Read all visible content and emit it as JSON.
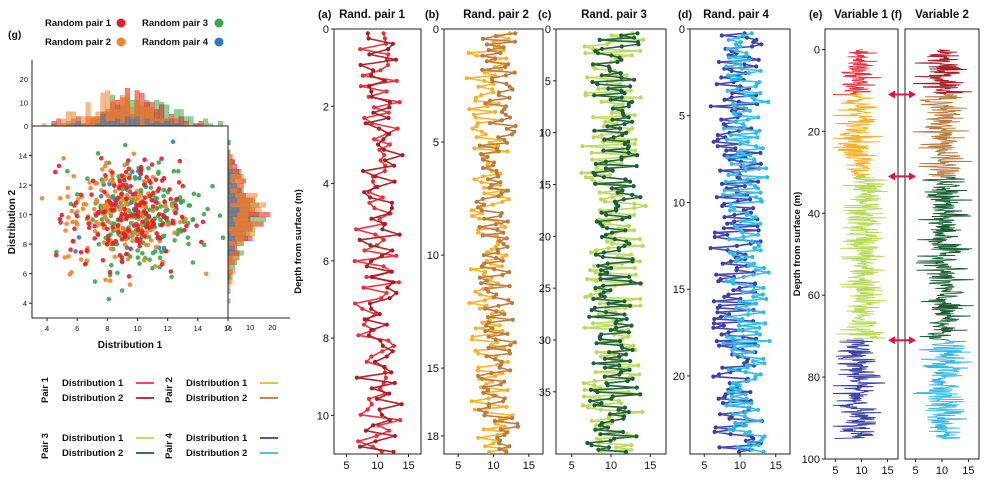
{
  "figure": {
    "colors": {
      "pair1_d1": "#e8303c",
      "pair1_d2": "#a81c24",
      "pair2_d1": "#f6b12a",
      "pair2_d2": "#b97a3e",
      "pair3_d1": "#b9d95a",
      "pair3_d2": "#1b5e35",
      "pair4_d1": "#3a3fa6",
      "pair4_d2": "#33b9e6",
      "scatter_p1": "#e22027",
      "scatter_p2": "#f0852a",
      "scatter_p3": "#3aa84a",
      "scatter_p4": "#2e7bbf",
      "arrow": "#d81b3c"
    }
  },
  "chart_data": [
    {
      "id": "g",
      "type": "scatter",
      "panel_label": "(g)",
      "title": "",
      "xlabel": "Distribution 1",
      "ylabel": "Distribution 2",
      "xlim": [
        3,
        16
      ],
      "ylim": [
        3,
        16
      ],
      "xticks": [
        "4",
        "6",
        "8",
        "10",
        "12",
        "14",
        "16"
      ],
      "yticks": [
        "4",
        "6",
        "8",
        "10",
        "12",
        "14"
      ],
      "top_hist_yticks": [
        "0",
        "10",
        "20"
      ],
      "right_hist_xticks": [
        "0",
        "10",
        "20"
      ],
      "legend": [
        {
          "label": "Random pair 1",
          "color_key": "scatter_p1"
        },
        {
          "label": "Random pair 3",
          "color_key": "scatter_p3"
        },
        {
          "label": "Random pair 2",
          "color_key": "scatter_p2"
        },
        {
          "label": "Random pair 4",
          "color_key": "scatter_p4"
        }
      ],
      "series": [
        {
          "name": "Random pair 1",
          "center": [
            9.2,
            10.0
          ],
          "spread": [
            1.8,
            1.8
          ]
        },
        {
          "name": "Random pair 2",
          "center": [
            8.9,
            10.1
          ],
          "spread": [
            2.0,
            1.9
          ]
        },
        {
          "name": "Random pair 3",
          "center": [
            10.2,
            10.0
          ],
          "spread": [
            2.0,
            1.9
          ]
        },
        {
          "name": "Random pair 4",
          "center": [
            9.5,
            10.3
          ],
          "spread": [
            1.8,
            1.7
          ]
        }
      ]
    },
    {
      "id": "a",
      "type": "line",
      "panel_label": "(a)",
      "title": "Rand. pair 1",
      "ylabel": "Depth from surface (m)",
      "xlim": [
        3,
        17
      ],
      "ylim": [
        0,
        11
      ],
      "xticks": [
        "5",
        "10",
        "15"
      ],
      "yticks": [
        "0",
        "2",
        "4",
        "6",
        "8",
        "10"
      ],
      "series": [
        {
          "name": "Distribution 1",
          "color_key": "pair1_d1",
          "mean": 10,
          "amplitude": 4.5
        },
        {
          "name": "Distribution 2",
          "color_key": "pair1_d2",
          "mean": 10.5,
          "amplitude": 4.2
        }
      ]
    },
    {
      "id": "b",
      "type": "line",
      "panel_label": "(b)",
      "title": "Rand. pair 2",
      "xlim": [
        3,
        17
      ],
      "ylim": [
        0,
        18.8
      ],
      "xticks": [
        "5",
        "10",
        "15"
      ],
      "yticks": [
        "0",
        "5",
        "10",
        "15",
        "18"
      ],
      "series": [
        {
          "name": "Distribution 1",
          "color_key": "pair2_d1",
          "mean": 9.3,
          "amplitude": 3.5
        },
        {
          "name": "Distribution 2",
          "color_key": "pair2_d2",
          "mean": 10.5,
          "amplitude": 3.2
        }
      ]
    },
    {
      "id": "c",
      "type": "line",
      "panel_label": "(c)",
      "title": "Rand. pair 3",
      "xlim": [
        3,
        17
      ],
      "ylim": [
        0,
        41
      ],
      "xticks": [
        "5",
        "10",
        "15"
      ],
      "yticks": [
        "0",
        "5",
        "10",
        "15",
        "20",
        "25",
        "30",
        "35"
      ],
      "series": [
        {
          "name": "Distribution 1",
          "color_key": "pair3_d1",
          "mean": 10.3,
          "amplitude": 4.5
        },
        {
          "name": "Distribution 2",
          "color_key": "pair3_d2",
          "mean": 10.3,
          "amplitude": 3.8
        }
      ]
    },
    {
      "id": "d",
      "type": "line",
      "panel_label": "(d)",
      "title": "Rand. pair 4",
      "xlim": [
        3,
        17
      ],
      "ylim": [
        0,
        24.5
      ],
      "xticks": [
        "5",
        "10",
        "15"
      ],
      "yticks": [
        "0",
        "5",
        "10",
        "15",
        "20"
      ],
      "series": [
        {
          "name": "Distribution 1",
          "color_key": "pair4_d1",
          "mean": 9.5,
          "amplitude": 4.0
        },
        {
          "name": "Distribution 2",
          "color_key": "pair4_d2",
          "mean": 10.8,
          "amplitude": 3.6
        }
      ]
    },
    {
      "id": "e",
      "type": "line",
      "panel_label": "(e)",
      "title": "Variable 1",
      "ylabel": "Depth from surface (m)",
      "xlim": [
        3,
        17
      ],
      "ylim": [
        -5,
        100
      ],
      "xticks": [
        "5",
        "10",
        "15"
      ],
      "yticks": [
        "0",
        "20",
        "40",
        "60",
        "80",
        "100"
      ],
      "segments": [
        {
          "from": 0,
          "to": 11,
          "color_key": "pair1_d1",
          "mean": 9.5
        },
        {
          "from": 11,
          "to": 31,
          "color_key": "pair2_d1",
          "mean": 9.3
        },
        {
          "from": 31,
          "to": 71,
          "color_key": "pair3_d1",
          "mean": 10.3
        },
        {
          "from": 71,
          "to": 95,
          "color_key": "pair4_d1",
          "mean": 9.3
        }
      ]
    },
    {
      "id": "f",
      "type": "line",
      "panel_label": "(f)",
      "title": "Variable 2",
      "xlim": [
        3,
        17
      ],
      "ylim": [
        -5,
        100
      ],
      "xticks": [
        "5",
        "10",
        "15"
      ],
      "yticks": [],
      "segments": [
        {
          "from": 0,
          "to": 11,
          "color_key": "pair1_d2",
          "mean": 10.5
        },
        {
          "from": 11,
          "to": 31,
          "color_key": "pair2_d2",
          "mean": 10.3
        },
        {
          "from": 31,
          "to": 71,
          "color_key": "pair3_d2",
          "mean": 10.3
        },
        {
          "from": 71,
          "to": 95,
          "color_key": "pair4_d2",
          "mean": 10.5
        }
      ],
      "correlation_arrow_depths": [
        11,
        31,
        71
      ]
    }
  ],
  "bottom_legend": [
    {
      "group": "Pair 1",
      "entries": [
        {
          "label": "Distribution 1",
          "color_key": "pair1_d1"
        },
        {
          "label": "Distribution 2",
          "color_key": "pair1_d2"
        }
      ]
    },
    {
      "group": "Pair 2",
      "entries": [
        {
          "label": "Distribution 1",
          "color_key": "pair2_d1"
        },
        {
          "label": "Distribution 2",
          "color_key": "pair2_d2"
        }
      ]
    },
    {
      "group": "Pair 3",
      "entries": [
        {
          "label": "Distribution 1",
          "color_key": "pair3_d1"
        },
        {
          "label": "Distribution 2",
          "color_key": "pair3_d2"
        }
      ]
    },
    {
      "group": "Pair 4",
      "entries": [
        {
          "label": "Distribution 1",
          "color_key": "pair4_d1"
        },
        {
          "label": "Distribution 2",
          "color_key": "pair4_d2"
        }
      ]
    }
  ]
}
